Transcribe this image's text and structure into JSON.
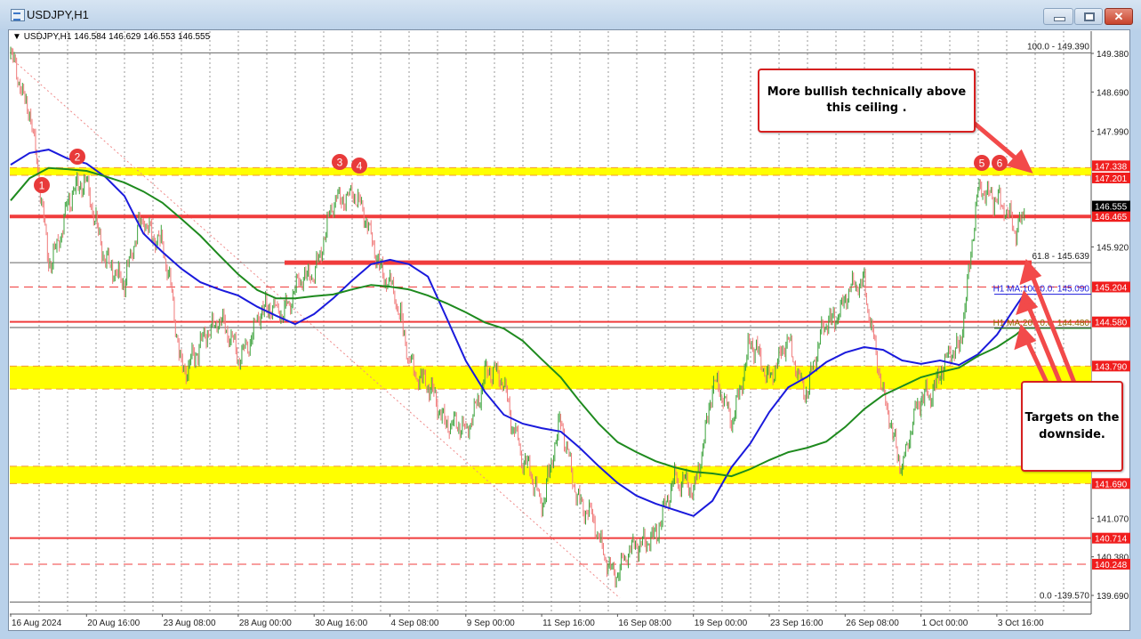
{
  "window": {
    "title": "USDJPY,H1",
    "minimize_icon": "minimize-icon",
    "maximize_icon": "maximize-icon",
    "close_icon": "close-icon",
    "close_label": "✕"
  },
  "chart_header": {
    "symbol": "USDJPY,H1",
    "open": "146.584",
    "high": "146.629",
    "low": "146.553",
    "close": "146.555"
  },
  "annotations": {
    "ceiling_note": "More bullish technically above this ceiling .",
    "targets_note": "Targets on the downside."
  },
  "colors": {
    "up_candle": "#3ca23c",
    "down_candle": "#f07a7a",
    "ma100": "#1a1adc",
    "ma200": "#1e8a1e",
    "level_red": "#f03c3c",
    "band_yellow": "#ffff00",
    "band_edge": "#f29a3a",
    "marker": "#e83a3a"
  },
  "chart_data": {
    "type": "candlestick",
    "symbol": "USDJPY",
    "timeframe": "H1",
    "ylim": [
      139.57,
      149.39
    ],
    "x_tick_labels": [
      "16 Aug 2024",
      "20 Aug 16:00",
      "23 Aug 08:00",
      "28 Aug 00:00",
      "30 Aug 16:00",
      "4 Sep 08:00",
      "9 Sep 00:00",
      "11 Sep 16:00",
      "16 Sep 08:00",
      "19 Sep 00:00",
      "23 Sep 16:00",
      "26 Sep 08:00",
      "1 Oct 00:00",
      "3 Oct 16:00"
    ],
    "y_tick_labels": [
      "149.380",
      "148.690",
      "147.990",
      "145.920",
      "141.070",
      "140.380",
      "139.690"
    ],
    "price_path": {
      "sampling": "approximate close every 16 H1 bars from 16 Aug 2024 00:00, final value = last price",
      "values": [
        149.3,
        148.43,
        145.6,
        146.6,
        147.2,
        145.56,
        145.4,
        146.36,
        146.0,
        143.81,
        144.05,
        144.77,
        143.81,
        144.69,
        144.77,
        145.08,
        145.56,
        146.6,
        147.0,
        146.04,
        145.24,
        143.97,
        143.34,
        142.86,
        142.54,
        143.65,
        143.49,
        142.06,
        141.42,
        142.7,
        141.42,
        140.71,
        139.99,
        140.71,
        140.63,
        141.9,
        141.42,
        143.49,
        142.86,
        144.13,
        143.65,
        144.13,
        143.34,
        144.61,
        144.92,
        145.4,
        143.18,
        142.06,
        143.18,
        143.65,
        144.13,
        146.83,
        146.91,
        146.12,
        146.555
      ]
    },
    "series": [
      {
        "name": "H1 MA:100:0.0",
        "label": "H1 MA:100:0.0: 145.090",
        "last": 145.09,
        "values": [
          147.39,
          147.6,
          147.66,
          147.5,
          147.41,
          147.17,
          146.83,
          146.16,
          145.83,
          145.53,
          145.29,
          145.16,
          145.05,
          144.85,
          144.69,
          144.54,
          144.72,
          145.0,
          145.32,
          145.61,
          145.69,
          145.61,
          145.39,
          144.64,
          143.88,
          143.33,
          142.92,
          142.76,
          142.68,
          142.62,
          142.33,
          142.0,
          141.7,
          141.47,
          141.33,
          141.22,
          141.11,
          141.38,
          141.98,
          142.41,
          142.97,
          143.41,
          143.6,
          143.86,
          144.03,
          144.13,
          144.08,
          143.89,
          143.83,
          143.89,
          143.81,
          144.0,
          144.35,
          144.86,
          145.08
        ]
      },
      {
        "name": "H1 MA:200:0.0",
        "label": "H1 MA:200:0.0: 144.480",
        "last": 144.48,
        "values": [
          146.75,
          147.15,
          147.33,
          147.31,
          147.28,
          147.18,
          147.07,
          146.91,
          146.71,
          146.42,
          146.12,
          145.77,
          145.43,
          145.15,
          145.0,
          145.0,
          145.04,
          145.07,
          145.16,
          145.24,
          145.21,
          145.16,
          145.05,
          144.91,
          144.75,
          144.57,
          144.46,
          144.24,
          143.91,
          143.59,
          143.16,
          142.76,
          142.43,
          142.25,
          142.09,
          141.98,
          141.9,
          141.87,
          141.82,
          141.95,
          142.11,
          142.25,
          142.33,
          142.44,
          142.7,
          143.02,
          143.27,
          143.43,
          143.59,
          143.68,
          143.76,
          143.97,
          144.13,
          144.35,
          144.48
        ]
      }
    ],
    "fibonacci": [
      {
        "label": "100.0 - 149.390",
        "price": 149.39
      },
      {
        "label": "61.8 - 145.639",
        "price": 145.639
      },
      {
        "label": "0.0 -139.570",
        "price": 139.57
      }
    ],
    "levels": [
      {
        "price": 146.465,
        "style": "solid-thick"
      },
      {
        "price": 145.639,
        "style": "solid-thick-partial"
      },
      {
        "price": 145.204,
        "style": "dashed"
      },
      {
        "price": 144.58,
        "style": "solid"
      },
      {
        "price": 144.48,
        "style": "thin-gray"
      },
      {
        "price": 140.714,
        "style": "solid"
      },
      {
        "price": 140.248,
        "style": "dashed"
      }
    ],
    "bands": [
      {
        "from": 147.201,
        "to": 147.338
      },
      {
        "from": 143.38,
        "to": 143.79
      },
      {
        "from": 141.69,
        "to": 142.0
      }
    ],
    "price_labels": [
      "147.338",
      "147.201",
      "146.465",
      "145.204",
      "144.580",
      "143.790",
      "141.690",
      "140.714",
      "140.248"
    ],
    "current_price_label": "146.555",
    "markers": [
      {
        "label": "1",
        "date": "16 Aug",
        "price": 147.0
      },
      {
        "label": "2",
        "date": "20 Aug",
        "price": 147.5
      },
      {
        "label": "3",
        "date": "30 Aug",
        "price": 147.4
      },
      {
        "label": "4",
        "date": "3 Sep",
        "price": 147.3
      },
      {
        "label": "5",
        "date": "2 Oct",
        "price": 147.4
      },
      {
        "label": "6",
        "date": "3 Oct",
        "price": 147.4
      }
    ]
  }
}
